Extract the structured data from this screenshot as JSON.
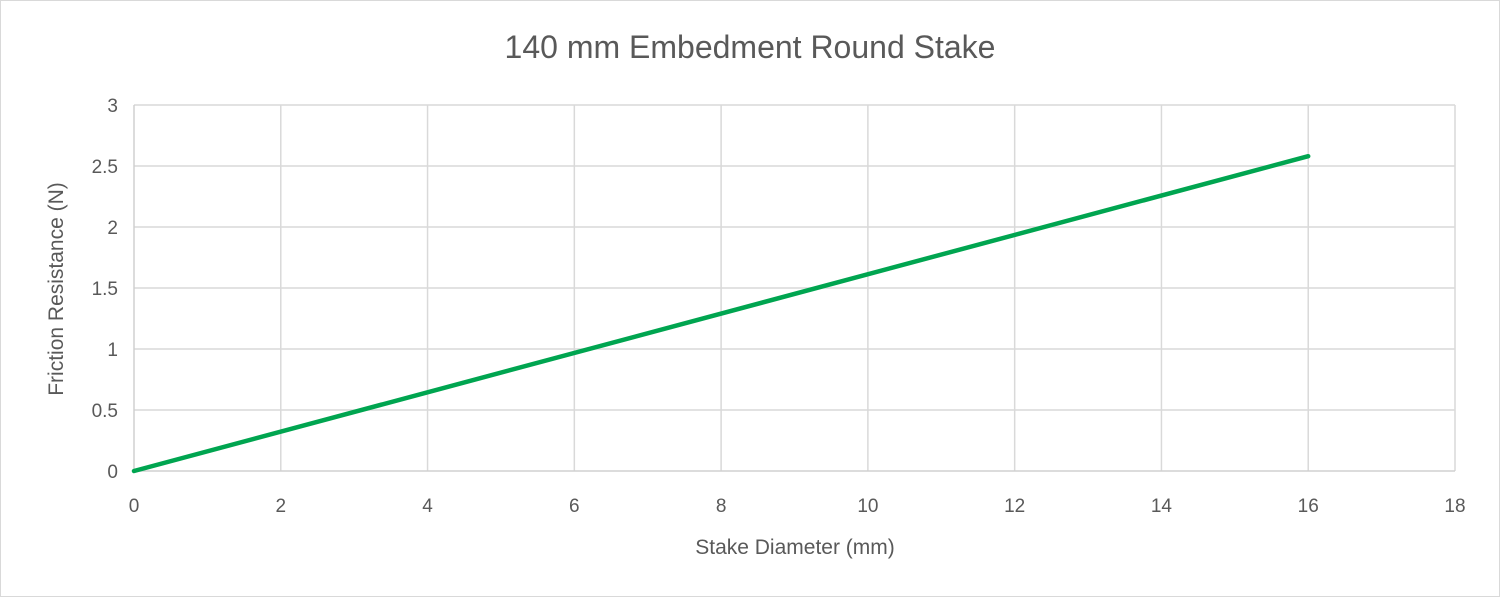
{
  "chart_data": {
    "type": "line",
    "title": "140 mm Embedment Round Stake",
    "xlabel": "Stake Diameter (mm)",
    "ylabel": "Friction Resistance (N)",
    "xlim": [
      0,
      18
    ],
    "ylim": [
      0,
      3
    ],
    "xticks": [
      0,
      2,
      4,
      6,
      8,
      10,
      12,
      14,
      16,
      18
    ],
    "yticks": [
      0,
      0.5,
      1,
      1.5,
      2,
      2.5,
      3
    ],
    "xtick_labels": [
      "0",
      "2",
      "4",
      "6",
      "8",
      "10",
      "12",
      "14",
      "16",
      "18"
    ],
    "ytick_labels": [
      "0",
      "0.5",
      "1",
      "1.5",
      "2",
      "2.5",
      "3"
    ],
    "grid": true,
    "legend": "none",
    "series": [
      {
        "color": "#00a550",
        "x": [
          0,
          16
        ],
        "y": [
          0,
          2.58
        ]
      }
    ]
  }
}
